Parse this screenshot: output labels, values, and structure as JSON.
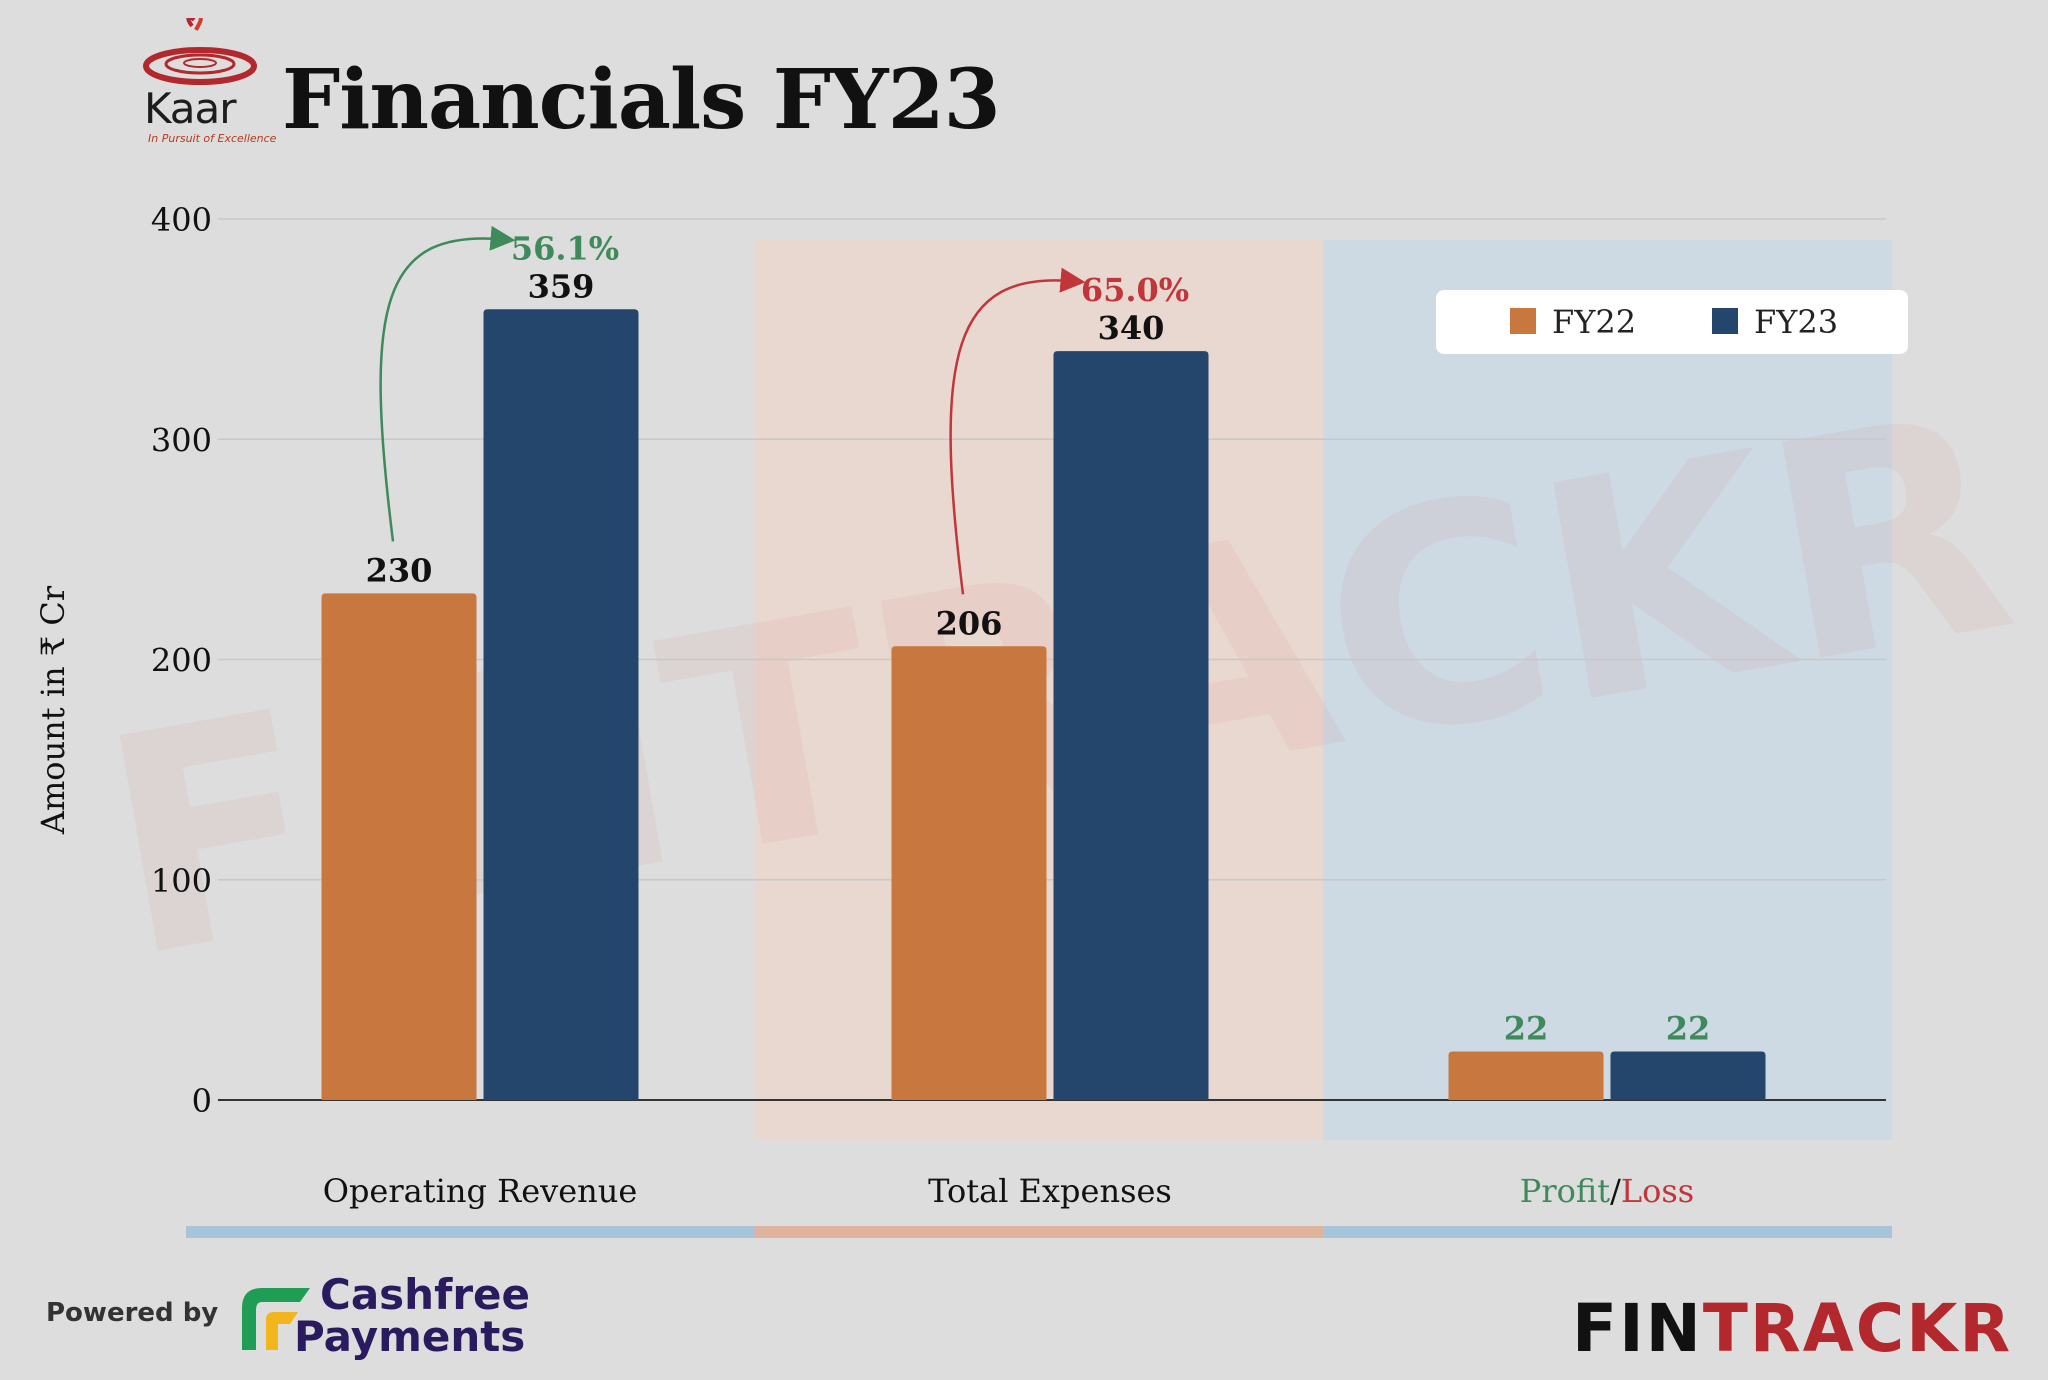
{
  "header": {
    "title": "Financials FY23",
    "company_logo": {
      "name": "Kaar",
      "tagline": "In Pursuit of Excellence"
    }
  },
  "chart_data": {
    "type": "bar",
    "title": "Financials FY23",
    "ylabel": "Amount in ₹ Cr",
    "xlabel": "",
    "ylim": [
      0,
      400
    ],
    "yticks": [
      0,
      100,
      200,
      300,
      400
    ],
    "grid": true,
    "legend_position": "top-right",
    "categories": [
      "Operating Revenue",
      "Total Expenses",
      "Profit/Loss"
    ],
    "category_parts": [
      [
        {
          "text": "Operating Revenue",
          "color": "#111111"
        }
      ],
      [
        {
          "text": "Total Expenses",
          "color": "#111111"
        }
      ],
      [
        {
          "text": "Profit",
          "color": "#3e8a5a"
        },
        {
          "text": "/",
          "color": "#111111"
        },
        {
          "text": "Loss",
          "color": "#c0363a"
        }
      ]
    ],
    "series": [
      {
        "name": "FY22",
        "color": "#c8783f",
        "values": [
          230,
          206,
          22
        ]
      },
      {
        "name": "FY23",
        "color": "#24466d",
        "values": [
          359,
          340,
          22
        ]
      }
    ],
    "data_labels": [
      [
        "230",
        "206",
        "22"
      ],
      [
        "359",
        "340",
        "22"
      ]
    ],
    "data_label_colors": [
      [
        "#111111",
        "#111111",
        "#3e8a5a"
      ],
      [
        "#111111",
        "#111111",
        "#3e8a5a"
      ]
    ],
    "annotations": [
      {
        "category": "Operating Revenue",
        "text": "56.1%",
        "color": "#3e8a5a"
      },
      {
        "category": "Total Expenses",
        "text": "65.0%",
        "color": "#c0363a"
      }
    ],
    "watermark": "FINTRACKR"
  },
  "footer": {
    "powered_by": "Powered by",
    "sponsor": {
      "line1": "Cashfree",
      "line2": "Payments"
    },
    "brand": {
      "part1": "FIN",
      "part2": "TRACKR"
    }
  }
}
